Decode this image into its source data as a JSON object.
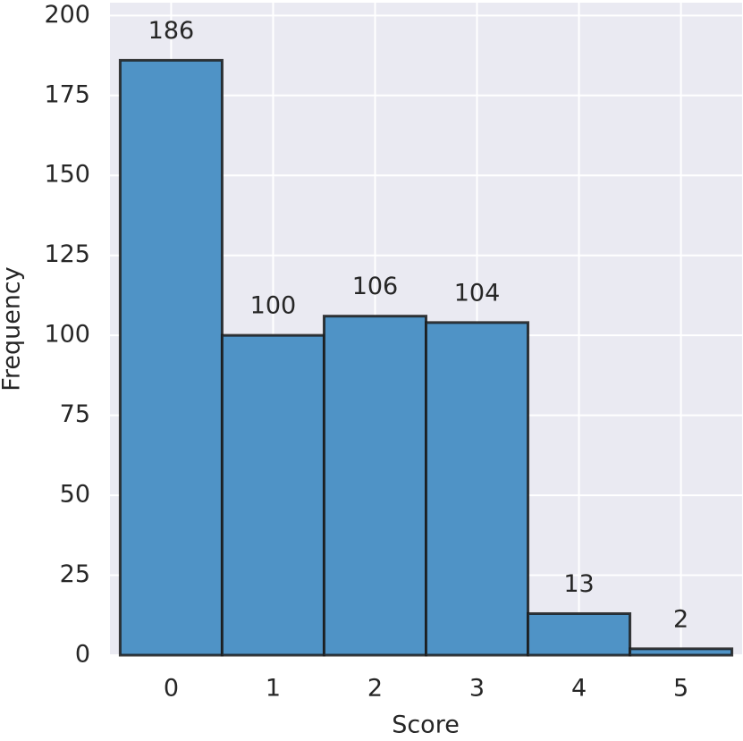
{
  "chart_data": {
    "type": "histogram",
    "x_label": "Score",
    "y_label": "Frequency",
    "bins": [
      -0.5,
      0.5,
      1.5,
      2.5,
      3.5,
      4.5,
      5.5
    ],
    "counts": [
      186,
      100,
      106,
      104,
      13,
      2
    ],
    "color": "#4f93c6",
    "edgecolor": "#1a1a1a",
    "xlim": [
      -0.6,
      5.6
    ],
    "xticks": [
      0,
      1,
      2,
      3,
      4,
      5
    ],
    "ylim": [
      0,
      204
    ],
    "yticks": [
      0,
      25,
      50,
      75,
      100,
      125,
      150,
      175,
      200
    ],
    "grid": true,
    "background": "#eaeaf2",
    "show_value_labels": true
  }
}
